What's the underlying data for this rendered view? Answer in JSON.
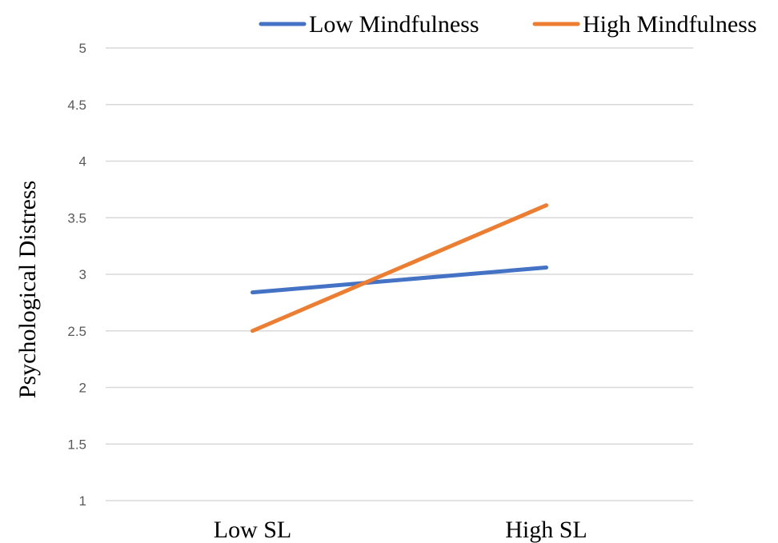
{
  "chart_data": {
    "type": "line",
    "categories": [
      "Low SL",
      "High SL"
    ],
    "series": [
      {
        "name": "Low Mindfulness",
        "values": [
          2.84,
          3.06
        ],
        "color": "#4472C4"
      },
      {
        "name": "High Mindfulness",
        "values": [
          2.5,
          3.61
        ],
        "color": "#ED7D31"
      }
    ],
    "ylabel": "Psychological Distress",
    "ylim": [
      1,
      5
    ],
    "yticks": [
      "1",
      "1.5",
      "2",
      "2.5",
      "3",
      "3.5",
      "4",
      "4.5",
      "5"
    ],
    "grid": true,
    "legend_position": "top"
  }
}
